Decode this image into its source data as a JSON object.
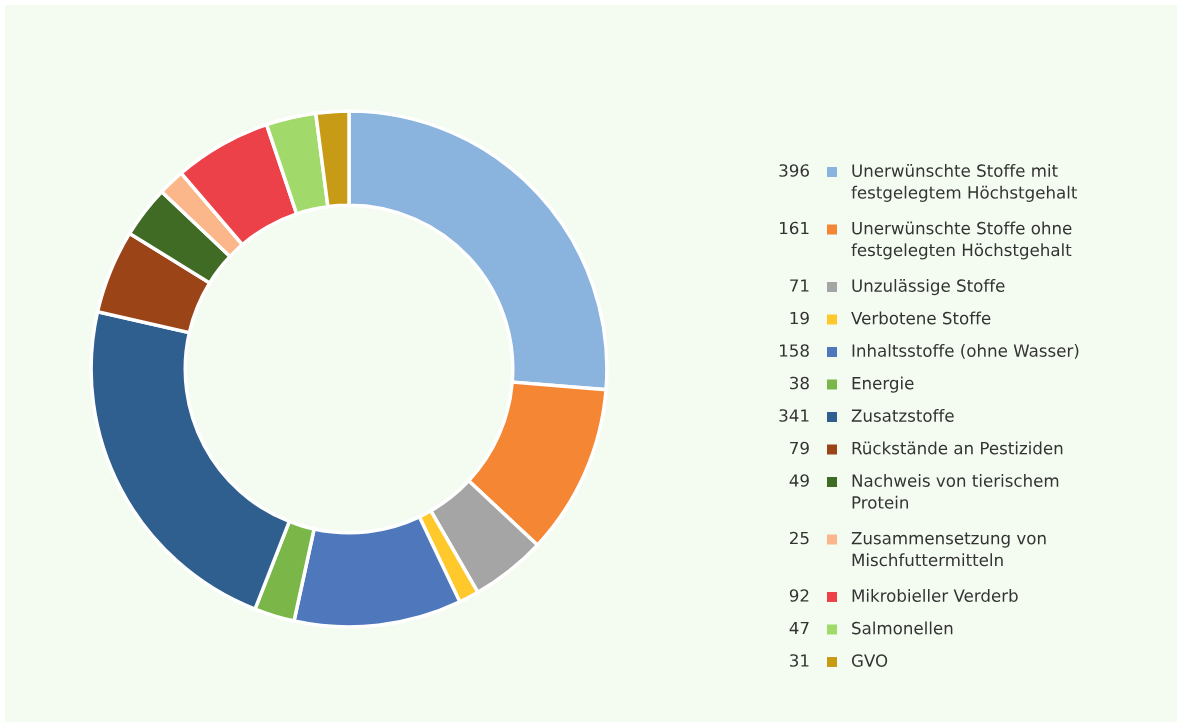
{
  "chart_data": {
    "type": "donut",
    "data_labels": true,
    "legend": "right",
    "categories": [
      "Unerwünschte Stoffe mit festgelegtem Höchstgehalt",
      "Unerwünschte Stoffe ohne festgelegten Höchstgehalt",
      "Unzulässige Stoffe",
      "Verbotene Stoffe",
      "Inhaltsstoffe (ohne Wasser)",
      "Energie",
      "Zusatzstoffe",
      "Rückstände an Pestiziden",
      "Nachweis von tierischem Protein",
      "Zusammensetzung von Mischfuttermitteln",
      "Mikrobieller Verderb",
      "Salmonellen",
      "GVO"
    ],
    "values": [
      396,
      161,
      71,
      19,
      158,
      38,
      341,
      79,
      49,
      25,
      92,
      47,
      31
    ],
    "colors": [
      "#8ab4de",
      "#f58634",
      "#a5a5a5",
      "#ffc92c",
      "#4f78bc",
      "#7ab648",
      "#2e5f8e",
      "#9b4417",
      "#3f6b25",
      "#fbb68a",
      "#ec4149",
      "#a2d96b",
      "#c89b17"
    ]
  }
}
